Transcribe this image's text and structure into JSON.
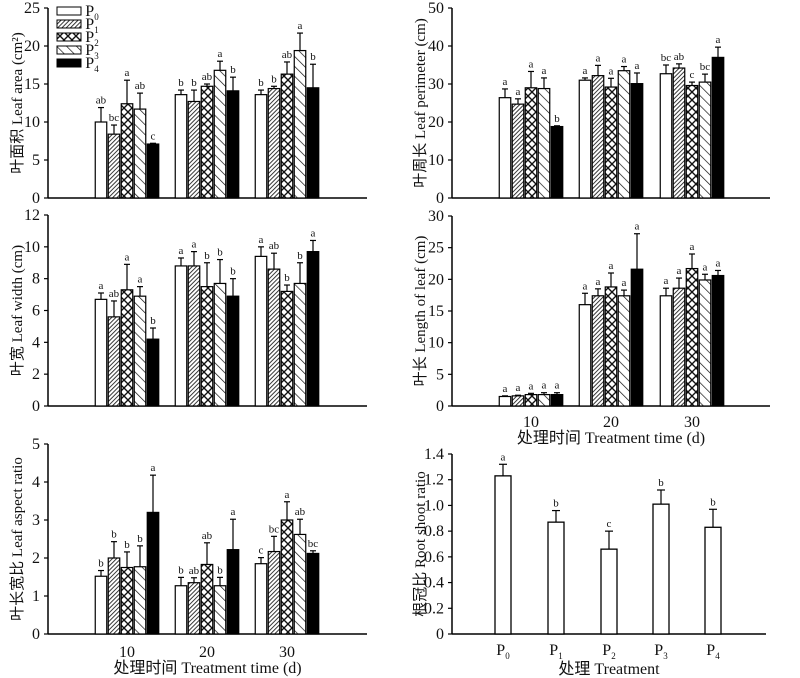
{
  "chart_data": [
    {
      "id": "leaf-area",
      "type": "bar",
      "ylabel": "叶面积 Leaf area (cm²)",
      "xlabel": "",
      "categories": [
        "10",
        "20",
        "30"
      ],
      "show_xticks": false,
      "ylim": [
        0,
        25
      ],
      "yticks": [
        0,
        5,
        10,
        15,
        20,
        25
      ],
      "legend": {
        "placement": "top-left",
        "entries": [
          "P0",
          "P1",
          "P2",
          "P3",
          "P4"
        ]
      },
      "series": [
        {
          "name": "P0",
          "values": [
            10.0,
            13.6,
            13.6
          ],
          "err": [
            1.9,
            0.6,
            0.6
          ],
          "sig": [
            "ab",
            "b",
            "b"
          ]
        },
        {
          "name": "P1",
          "values": [
            8.4,
            12.7,
            14.4
          ],
          "err": [
            1.2,
            1.5,
            0.3
          ],
          "sig": [
            "bc",
            "b",
            "b"
          ]
        },
        {
          "name": "P2",
          "values": [
            12.4,
            14.7,
            16.3
          ],
          "err": [
            3.1,
            0.3,
            1.6
          ],
          "sig": [
            "a",
            "ab",
            "ab"
          ]
        },
        {
          "name": "P3",
          "values": [
            11.7,
            16.8,
            19.4
          ],
          "err": [
            2.1,
            1.2,
            2.3
          ],
          "sig": [
            "ab",
            "a",
            "a"
          ]
        },
        {
          "name": "P4",
          "values": [
            7.1,
            14.1,
            14.5
          ],
          "err": [
            0.1,
            1.8,
            3.1
          ],
          "sig": [
            "c",
            "b",
            "b"
          ]
        }
      ]
    },
    {
      "id": "leaf-perimeter",
      "type": "bar",
      "ylabel": "叶周长 Leaf perimeter (cm)",
      "xlabel": "",
      "categories": [
        "10",
        "20",
        "30"
      ],
      "show_xticks": false,
      "ylim": [
        0,
        50
      ],
      "yticks": [
        0,
        10,
        20,
        30,
        40,
        50
      ],
      "series": [
        {
          "name": "P0",
          "values": [
            26.4,
            31.0,
            32.7
          ],
          "err": [
            2.3,
            0.6,
            2.3
          ],
          "sig": [
            "a",
            "a",
            "bc"
          ]
        },
        {
          "name": "P1",
          "values": [
            24.7,
            32.2,
            34.2
          ],
          "err": [
            1.4,
            2.7,
            1.1
          ],
          "sig": [
            "a",
            "a",
            "ab"
          ]
        },
        {
          "name": "P2",
          "values": [
            29.0,
            29.2,
            29.6
          ],
          "err": [
            4.3,
            2.3,
            0.9
          ],
          "sig": [
            "a",
            "a",
            "c"
          ]
        },
        {
          "name": "P3",
          "values": [
            28.8,
            33.5,
            30.5
          ],
          "err": [
            2.8,
            1.1,
            2.1
          ],
          "sig": [
            "a",
            "a",
            "bc"
          ]
        },
        {
          "name": "P4",
          "values": [
            18.8,
            30.1,
            37.0
          ],
          "err": [
            0.2,
            2.8,
            2.7
          ],
          "sig": [
            "b",
            "a",
            "a"
          ]
        }
      ]
    },
    {
      "id": "leaf-width",
      "type": "bar",
      "ylabel": "叶宽 Leaf width (cm)",
      "xlabel": "",
      "categories": [
        "10",
        "20",
        "30"
      ],
      "show_xticks": false,
      "ylim": [
        0,
        12
      ],
      "yticks": [
        0,
        2,
        4,
        6,
        8,
        10,
        12
      ],
      "series": [
        {
          "name": "P0",
          "values": [
            6.7,
            8.8,
            9.4
          ],
          "err": [
            0.4,
            0.5,
            0.6
          ],
          "sig": [
            "a",
            "a",
            "a"
          ]
        },
        {
          "name": "P1",
          "values": [
            5.6,
            8.8,
            8.6
          ],
          "err": [
            1.0,
            0.9,
            1.0
          ],
          "sig": [
            "ab",
            "a",
            "ab"
          ]
        },
        {
          "name": "P2",
          "values": [
            7.3,
            7.5,
            7.2
          ],
          "err": [
            1.6,
            1.5,
            0.4
          ],
          "sig": [
            "a",
            "b",
            "b"
          ]
        },
        {
          "name": "P3",
          "values": [
            6.9,
            7.7,
            7.7
          ],
          "err": [
            0.6,
            1.5,
            1.3
          ],
          "sig": [
            "a",
            "b",
            "b"
          ]
        },
        {
          "name": "P4",
          "values": [
            4.2,
            6.9,
            9.7
          ],
          "err": [
            0.7,
            1.1,
            0.7
          ],
          "sig": [
            "b",
            "b",
            "a"
          ]
        }
      ]
    },
    {
      "id": "leaf-length",
      "type": "bar",
      "ylabel": "叶长 Length of leaf (cm)",
      "xlabel": "处理时间 Treatment time (d)",
      "categories": [
        "10",
        "20",
        "30"
      ],
      "show_xticks": true,
      "ylim": [
        0,
        30
      ],
      "yticks": [
        0,
        5,
        10,
        15,
        20,
        25,
        30
      ],
      "series": [
        {
          "name": "P0",
          "values": [
            1.5,
            16.0,
            17.4
          ],
          "err": [
            0.1,
            1.8,
            1.2
          ],
          "sig": [
            "a",
            "a",
            "a"
          ]
        },
        {
          "name": "P1",
          "values": [
            1.6,
            17.4,
            18.6
          ],
          "err": [
            0.1,
            1.1,
            1.6
          ],
          "sig": [
            "a",
            "a",
            "a"
          ]
        },
        {
          "name": "P2",
          "values": [
            1.8,
            18.8,
            21.7
          ],
          "err": [
            0.2,
            2.2,
            2.3
          ],
          "sig": [
            "a",
            "a",
            "a"
          ]
        },
        {
          "name": "P3",
          "values": [
            1.8,
            17.4,
            19.9
          ],
          "err": [
            0.3,
            0.9,
            0.9
          ],
          "sig": [
            "a",
            "a",
            "a"
          ]
        },
        {
          "name": "P4",
          "values": [
            1.8,
            21.6,
            20.6
          ],
          "err": [
            0.3,
            5.6,
            0.8
          ],
          "sig": [
            "a",
            "a",
            "a"
          ]
        }
      ]
    },
    {
      "id": "leaf-aspect-ratio",
      "type": "bar",
      "ylabel": "叶长宽比 Leaf aspect ratio",
      "xlabel": "处理时间 Treatment time (d)",
      "categories": [
        "10",
        "20",
        "30"
      ],
      "show_xticks": true,
      "ylim": [
        0,
        5
      ],
      "yticks": [
        0,
        1,
        2,
        3,
        4,
        5
      ],
      "series": [
        {
          "name": "P0",
          "values": [
            1.52,
            1.27,
            1.85
          ],
          "err": [
            0.15,
            0.22,
            0.16
          ],
          "sig": [
            "b",
            "b",
            "c"
          ]
        },
        {
          "name": "P1",
          "values": [
            2.0,
            1.35,
            2.17
          ],
          "err": [
            0.43,
            0.13,
            0.4
          ],
          "sig": [
            "b",
            "ab",
            "bc"
          ]
        },
        {
          "name": "P2",
          "values": [
            1.75,
            1.83,
            3.0
          ],
          "err": [
            0.41,
            0.57,
            0.48
          ],
          "sig": [
            "b",
            "ab",
            "a"
          ]
        },
        {
          "name": "P3",
          "values": [
            1.77,
            1.27,
            2.62
          ],
          "err": [
            0.55,
            0.22,
            0.4
          ],
          "sig": [
            "b",
            "b",
            "ab"
          ]
        },
        {
          "name": "P4",
          "values": [
            3.2,
            2.22,
            2.12
          ],
          "err": [
            0.98,
            0.8,
            0.07
          ],
          "sig": [
            "a",
            "a",
            "bc"
          ]
        }
      ]
    },
    {
      "id": "root-shoot-ratio",
      "type": "bar",
      "ylabel": "根冠比 Root shoot ratio",
      "xlabel": "处理 Treatment",
      "categories": [
        "P0",
        "P1",
        "P2",
        "P3",
        "P4"
      ],
      "show_xticks": true,
      "ylim": [
        0,
        1.4
      ],
      "yticks": [
        "0",
        "0.2",
        "0.4",
        "0.6",
        "0.8",
        "1.0",
        "1.2",
        "1.4"
      ],
      "values": [
        1.23,
        0.87,
        0.66,
        1.01,
        0.83
      ],
      "err": [
        0.09,
        0.09,
        0.14,
        0.11,
        0.14
      ],
      "sig": [
        "a",
        "b",
        "c",
        "b",
        "b"
      ]
    }
  ]
}
